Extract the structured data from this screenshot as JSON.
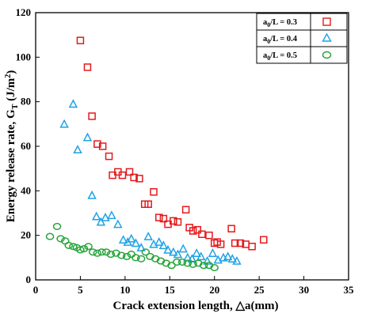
{
  "chart_data": {
    "type": "scatter",
    "xlabel": "Crack extension length, △a(mm)",
    "ylabel_main": "Energy release rate, G",
    "ylabel_sub": "T",
    "ylabel_unit_pre": " (J/m",
    "ylabel_unit_sup": "2",
    "ylabel_unit_post": ")",
    "xlim": [
      0,
      35
    ],
    "ylim": [
      0,
      120
    ],
    "xticks": [
      0,
      5,
      10,
      15,
      20,
      25,
      30,
      35
    ],
    "yticks": [
      0,
      20,
      40,
      60,
      80,
      100,
      120
    ],
    "grid": false,
    "legend_position": "top-right",
    "series": [
      {
        "label_prefix": "a",
        "label_sub": "0",
        "label_suffix": "/L = 0.3",
        "marker": "square",
        "color": "#e31a1c",
        "x": [
          5.0,
          5.8,
          6.3,
          6.9,
          7.5,
          8.2,
          8.6,
          9.2,
          9.7,
          10.5,
          11.0,
          11.6,
          12.2,
          12.6,
          13.2,
          13.8,
          14.3,
          14.8,
          15.4,
          15.9,
          16.8,
          17.2,
          17.6,
          18.1,
          18.6,
          19.4,
          20.0,
          20.3,
          20.7,
          21.9,
          22.3,
          22.9,
          23.5,
          24.2,
          25.5
        ],
        "y": [
          107.5,
          95.5,
          73.5,
          61.0,
          60.0,
          55.5,
          47.0,
          48.5,
          47.0,
          48.5,
          46.0,
          45.5,
          34.0,
          34.0,
          39.5,
          28.0,
          27.5,
          25.0,
          26.5,
          26.0,
          31.5,
          23.5,
          22.0,
          22.5,
          20.5,
          20.0,
          16.5,
          17.0,
          16.0,
          23.0,
          16.5,
          16.5,
          16.0,
          15.0,
          18.0
        ]
      },
      {
        "label_prefix": "a",
        "label_sub": "0",
        "label_suffix": "/L = 0.4",
        "marker": "triangle",
        "color": "#1fa2e6",
        "x": [
          3.2,
          4.2,
          4.7,
          5.8,
          6.3,
          6.8,
          7.3,
          7.8,
          8.5,
          9.2,
          9.8,
          10.3,
          10.7,
          11.2,
          11.8,
          12.6,
          13.2,
          13.8,
          14.3,
          14.8,
          15.4,
          15.9,
          16.5,
          17.0,
          17.5,
          18.0,
          18.5,
          19.2,
          19.8,
          20.4,
          21.0,
          21.5,
          22.0,
          22.5
        ],
        "y": [
          70.0,
          79.0,
          58.5,
          64.0,
          38.0,
          28.5,
          26.0,
          28.0,
          29.0,
          25.0,
          18.0,
          17.0,
          18.5,
          16.5,
          14.5,
          19.5,
          16.0,
          17.0,
          15.5,
          13.5,
          12.5,
          11.5,
          14.0,
          10.0,
          9.5,
          12.0,
          10.5,
          8.5,
          12.0,
          9.0,
          10.0,
          10.5,
          9.5,
          8.5
        ]
      },
      {
        "label_prefix": "a",
        "label_sub": "0",
        "label_suffix": "/L = 0.5",
        "marker": "circle",
        "color": "#27a33a",
        "x": [
          1.6,
          2.4,
          2.8,
          3.3,
          3.7,
          4.2,
          4.6,
          5.0,
          5.4,
          5.9,
          6.4,
          6.9,
          7.4,
          7.9,
          8.4,
          9.0,
          9.6,
          10.2,
          10.7,
          11.2,
          11.8,
          12.3,
          12.8,
          13.4,
          14.0,
          14.6,
          15.2,
          15.8,
          16.4,
          17.0,
          17.6,
          18.2,
          18.8,
          19.4,
          20.0
        ],
        "y": [
          19.5,
          24.0,
          18.5,
          17.5,
          15.5,
          15.0,
          14.5,
          13.5,
          14.0,
          15.0,
          12.5,
          12.0,
          12.5,
          12.5,
          11.5,
          12.0,
          11.0,
          10.5,
          11.5,
          10.0,
          9.5,
          12.5,
          10.5,
          9.5,
          8.5,
          7.5,
          6.5,
          8.0,
          8.0,
          7.5,
          7.0,
          7.5,
          6.5,
          6.5,
          5.5
        ]
      }
    ]
  }
}
